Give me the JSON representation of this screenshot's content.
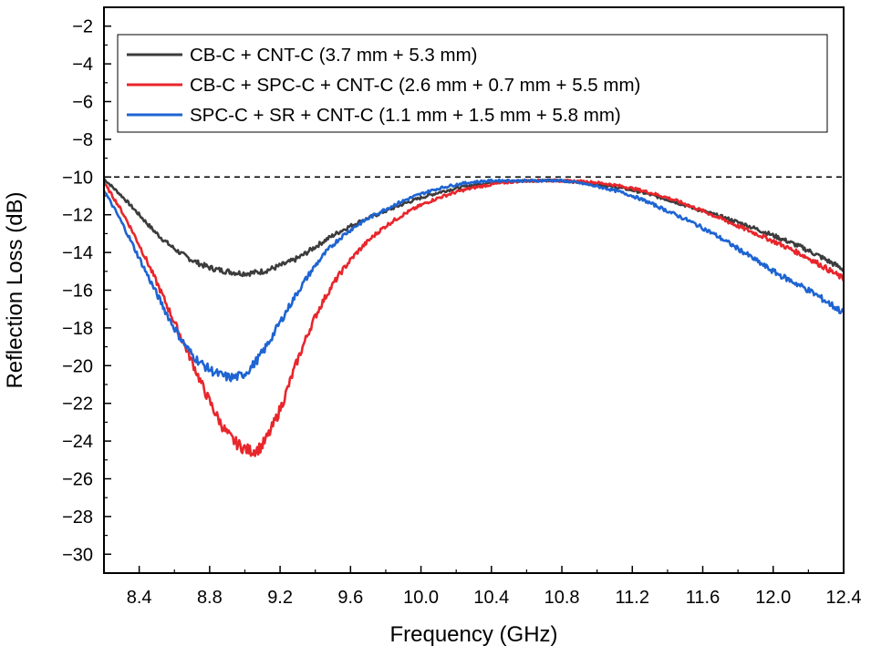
{
  "chart_data": {
    "type": "line",
    "title": "",
    "xlabel": "Frequency (GHz)",
    "ylabel": "Reflection Loss (dB)",
    "xlim": [
      8.2,
      12.4
    ],
    "ylim": [
      -31,
      -1
    ],
    "xticks": [
      8.4,
      8.8,
      9.2,
      9.6,
      10.0,
      10.4,
      10.8,
      11.2,
      11.6,
      12.0,
      12.4
    ],
    "xtick_labels": [
      "8.4",
      "8.8",
      "9.2",
      "9.6",
      "10.0",
      "10.4",
      "10.8",
      "11.2",
      "11.6",
      "12.0",
      "12.4"
    ],
    "yticks": [
      -2,
      -4,
      -6,
      -8,
      -10,
      -12,
      -14,
      -16,
      -18,
      -20,
      -22,
      -24,
      -26,
      -28,
      -30
    ],
    "ytick_labels": [
      "−2",
      "−4",
      "−6",
      "−8",
      "−10",
      "−12",
      "−14",
      "−16",
      "−18",
      "−20",
      "−22",
      "−24",
      "−26",
      "−28",
      "−30"
    ],
    "reference_line": {
      "y": -10,
      "style": "dashed"
    },
    "legend_position": "top-left",
    "series": [
      {
        "name": "CB-C + CNT-C (3.7 mm + 5.3 mm)",
        "color": "#3c3c3c",
        "x": [
          8.2,
          8.3,
          8.4,
          8.5,
          8.6,
          8.7,
          8.8,
          8.9,
          9.0,
          9.1,
          9.2,
          9.3,
          9.4,
          9.5,
          9.6,
          9.8,
          10.0,
          10.2,
          10.4,
          10.6,
          10.8,
          11.0,
          11.2,
          11.4,
          11.6,
          11.8,
          12.0,
          12.2,
          12.4
        ],
        "y": [
          -10.1,
          -11.0,
          -12.0,
          -13.0,
          -13.8,
          -14.4,
          -14.8,
          -15.0,
          -15.1,
          -15.0,
          -14.7,
          -14.3,
          -13.7,
          -13.1,
          -12.6,
          -11.8,
          -11.1,
          -10.6,
          -10.3,
          -10.2,
          -10.2,
          -10.4,
          -10.7,
          -11.2,
          -11.8,
          -12.4,
          -13.1,
          -13.9,
          -14.9
        ]
      },
      {
        "name": "CB-C + SPC-C + CNT-C (2.6 mm + 0.7 mm + 5.5 mm)",
        "color": "#e8262c",
        "x": [
          8.2,
          8.3,
          8.4,
          8.5,
          8.6,
          8.7,
          8.8,
          8.9,
          9.0,
          9.05,
          9.1,
          9.2,
          9.3,
          9.4,
          9.5,
          9.6,
          9.7,
          9.8,
          10.0,
          10.2,
          10.4,
          10.6,
          10.8,
          11.0,
          11.2,
          11.4,
          11.6,
          11.8,
          12.0,
          12.2,
          12.4
        ],
        "y": [
          -10.3,
          -11.8,
          -13.6,
          -15.6,
          -17.7,
          -19.8,
          -21.9,
          -23.6,
          -24.4,
          -24.5,
          -24.2,
          -22.3,
          -19.7,
          -17.4,
          -15.7,
          -14.4,
          -13.4,
          -12.6,
          -11.5,
          -10.8,
          -10.4,
          -10.2,
          -10.2,
          -10.3,
          -10.6,
          -11.1,
          -11.8,
          -12.6,
          -13.4,
          -14.3,
          -15.4
        ]
      },
      {
        "name": "SPC-C + SR + CNT-C (1.1 mm + 1.5 mm + 5.8 mm)",
        "color": "#1e64d2",
        "x": [
          8.2,
          8.3,
          8.4,
          8.5,
          8.6,
          8.7,
          8.8,
          8.9,
          8.95,
          9.0,
          9.1,
          9.2,
          9.3,
          9.4,
          9.5,
          9.6,
          9.8,
          10.0,
          10.2,
          10.4,
          10.6,
          10.8,
          11.0,
          11.2,
          11.4,
          11.6,
          11.8,
          12.0,
          12.2,
          12.4
        ],
        "y": [
          -10.7,
          -12.4,
          -14.3,
          -16.2,
          -18.0,
          -19.4,
          -20.2,
          -20.6,
          -20.6,
          -20.4,
          -19.3,
          -17.7,
          -16.1,
          -14.7,
          -13.6,
          -12.8,
          -11.7,
          -10.9,
          -10.4,
          -10.2,
          -10.2,
          -10.2,
          -10.5,
          -11.0,
          -11.8,
          -12.7,
          -13.8,
          -15.0,
          -16.0,
          -17.2
        ]
      }
    ]
  }
}
